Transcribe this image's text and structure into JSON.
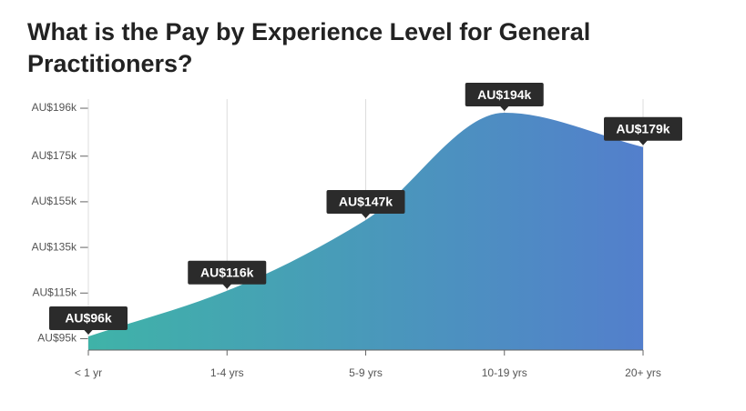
{
  "chart_data": {
    "type": "area",
    "title": "What is the Pay by Experience Level for General Practitioners?",
    "categories": [
      "< 1 yr",
      "1-4 yrs",
      "5-9 yrs",
      "10-19 yrs",
      "20+ yrs"
    ],
    "values": [
      96,
      116,
      147,
      194,
      179
    ],
    "value_labels": [
      "AU$96k",
      "AU$116k",
      "AU$147k",
      "AU$194k",
      "AU$179k"
    ],
    "colors": [
      "#3fb3a8",
      "#537fcc"
    ],
    "ylim": [
      90,
      200
    ],
    "yticks": [
      {
        "value": 95,
        "label": "AU$95k"
      },
      {
        "value": 115,
        "label": "AU$115k"
      },
      {
        "value": 135,
        "label": "AU$135k"
      },
      {
        "value": 155,
        "label": "AU$155k"
      },
      {
        "value": 175,
        "label": "AU$175k"
      },
      {
        "value": 196,
        "label": "AU$196k"
      }
    ],
    "grid": true
  }
}
